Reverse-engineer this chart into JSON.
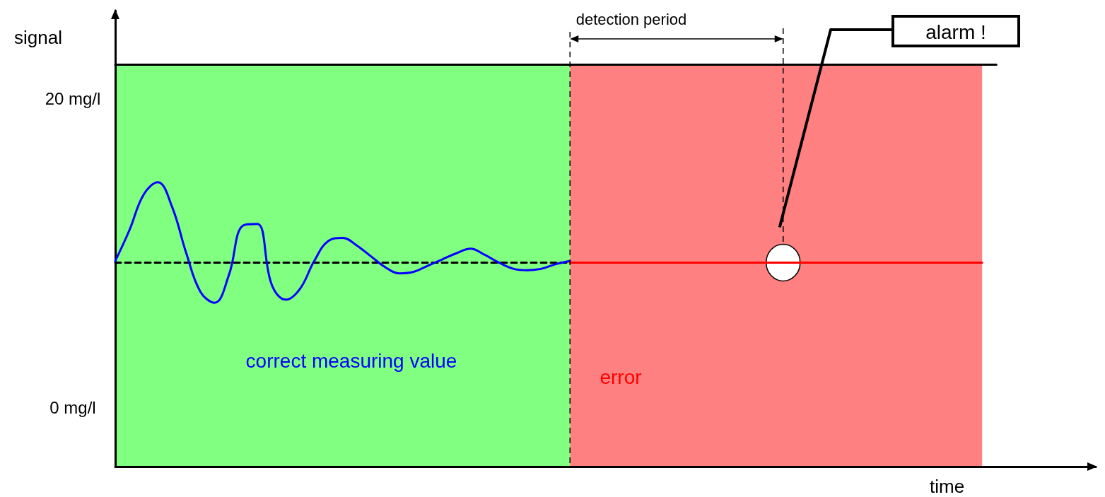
{
  "chart_data": {
    "type": "line",
    "ylabel": "signal",
    "xlabel": "time",
    "categories": [
      null,
      null,
      null,
      null,
      null,
      null,
      null,
      null,
      null,
      null,
      null,
      null,
      null,
      null,
      null,
      null,
      null,
      null,
      null,
      null,
      null,
      null,
      null,
      null,
      null,
      null,
      null,
      null,
      null,
      null,
      null,
      null,
      null,
      null,
      null,
      null,
      null,
      null,
      null,
      null,
      null,
      null,
      null,
      null,
      null,
      null,
      null,
      null,
      null,
      null,
      null,
      null,
      null,
      null,
      null,
      null,
      null,
      null,
      null,
      null,
      null,
      null,
      null,
      null,
      null,
      null,
      null,
      null,
      null,
      null
    ],
    "ylim": [
      -3.8,
      25.7
    ],
    "yticks": [
      {
        "value": 20,
        "label": "20 mg/l"
      },
      {
        "value": 0,
        "label": "0 mg/l"
      }
    ],
    "grid": false,
    "tick_labels": "y",
    "marker": "none",
    "series": [
      {
        "color": "#000000",
        "values": [
          22.2,
          22.2,
          22.2,
          22.2,
          22.2,
          22.2,
          22.2,
          22.2,
          22.2,
          22.2,
          22.2,
          22.2,
          22.2,
          22.2,
          22.2,
          22.2,
          22.2,
          22.2,
          22.2,
          22.2,
          22.2,
          22.2,
          22.2,
          22.2,
          22.2,
          22.2,
          22.2,
          22.2,
          22.2,
          22.2,
          22.2,
          22.2,
          22.2,
          22.2,
          22.2,
          22.2,
          22.2,
          22.2,
          22.2,
          22.2,
          22.2,
          22.2,
          22.2,
          22.2,
          22.2,
          22.2,
          22.2,
          22.2,
          22.2,
          22.2,
          22.2,
          22.2,
          22.2,
          22.2,
          22.2,
          22.2,
          22.2,
          22.2,
          22.2,
          22.2,
          22.2,
          22.2,
          22.2,
          null,
          null,
          null,
          null,
          null,
          null,
          null
        ]
      },
      {
        "color": "#000000",
        "line_style": "dashed",
        "values": [
          9.4,
          9.4,
          9.4,
          9.4,
          9.4,
          9.4,
          9.4,
          9.4,
          9.4,
          9.4,
          9.4,
          9.4,
          9.4,
          9.4,
          9.4,
          9.4,
          9.4,
          9.4,
          9.4,
          9.4,
          9.4,
          9.4,
          9.4,
          9.4,
          9.4,
          9.4,
          9.4,
          9.4,
          9.4,
          9.4,
          9.4,
          9.4,
          9.4,
          null,
          null,
          null,
          null,
          null,
          null,
          null,
          null,
          null,
          null,
          null,
          null,
          null,
          null,
          null,
          null,
          null,
          null,
          null,
          null,
          null,
          null,
          null,
          null,
          null,
          null,
          null,
          null,
          null,
          null,
          null,
          null,
          null,
          null,
          null,
          null,
          null
        ]
      },
      {
        "color": "#ff0000",
        "values": [
          null,
          null,
          null,
          null,
          null,
          null,
          null,
          null,
          null,
          null,
          null,
          null,
          null,
          null,
          null,
          null,
          null,
          null,
          null,
          null,
          null,
          null,
          null,
          null,
          null,
          null,
          null,
          null,
          null,
          null,
          null,
          null,
          9.4,
          9.4,
          9.4,
          9.4,
          9.4,
          9.4,
          9.4,
          9.4,
          9.4,
          9.4,
          9.4,
          9.4,
          9.4,
          9.4,
          9.4,
          9.4,
          9.4,
          9.4,
          9.4,
          9.4,
          9.4,
          9.4,
          9.4,
          9.4,
          9.4,
          9.4,
          9.4,
          9.4,
          9.4,
          9.4,
          null,
          null,
          null,
          null,
          null,
          null,
          null,
          null
        ]
      },
      {
        "color": "#0000ff",
        "values": [
          9.5,
          11.5,
          13.8,
          14.6,
          13.0,
          10.0,
          7.5,
          6.8,
          8.6,
          11.8,
          11.9,
          8.0,
          7.0,
          7.7,
          9.5,
          10.8,
          11.0,
          10.5,
          9.8,
          9.1,
          8.7,
          8.8,
          9.2,
          9.6,
          10.0,
          10.3,
          9.9,
          9.4,
          9.0,
          8.9,
          9.0,
          9.3,
          9.5,
          null,
          null,
          null,
          null,
          null,
          null,
          null,
          null,
          null,
          null,
          null,
          null,
          null,
          null,
          null,
          null,
          null,
          null,
          null,
          null,
          null,
          null,
          null,
          null,
          null,
          null,
          null,
          null,
          null,
          null,
          null,
          null,
          null,
          null,
          null,
          null,
          null
        ]
      }
    ],
    "annotations": [
      "detection period",
      "alarm !",
      "correct measuring value",
      "error"
    ]
  }
}
